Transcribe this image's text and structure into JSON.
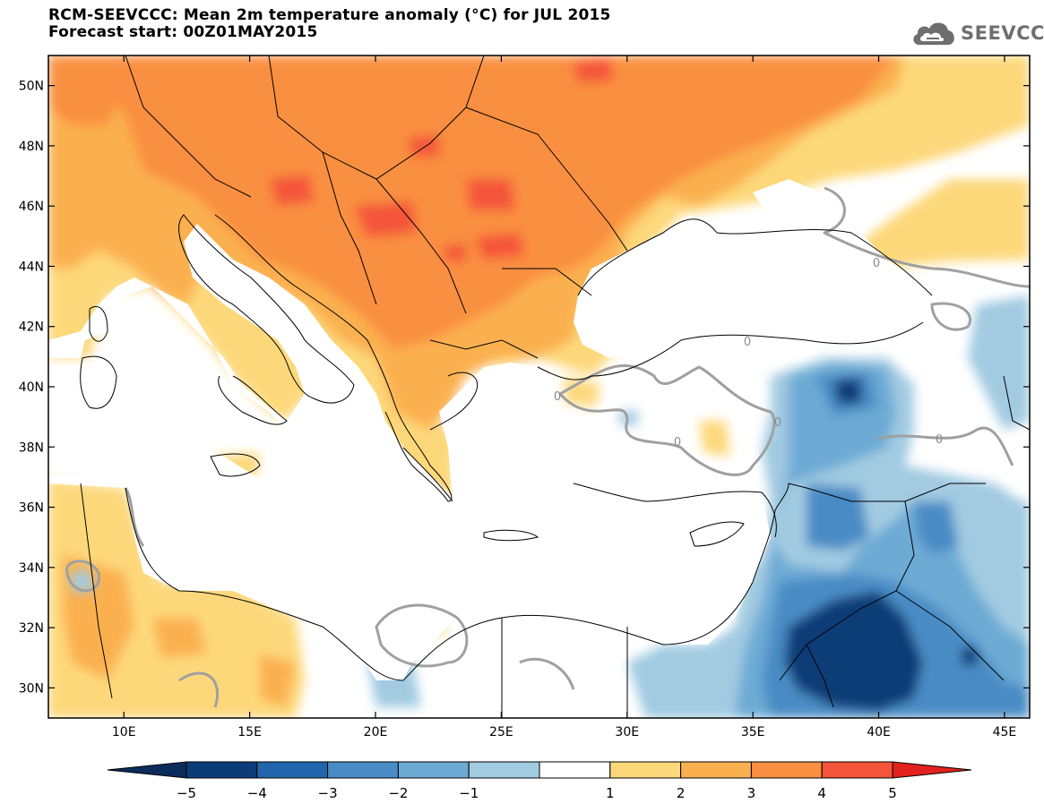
{
  "header": {
    "title_line1": "RCM-SEEVCCC: Mean 2m temperature anomaly (°C) for JUL 2015",
    "title_line2": "Forecast start: 00Z01MAY2015"
  },
  "logo": {
    "text": "SEEVCCC",
    "icon": "cloud-icon",
    "color": "#6e6e6e"
  },
  "map": {
    "lon_range": [
      7,
      46
    ],
    "lat_range": [
      29,
      51
    ],
    "lat_ticks": [
      {
        "value": 50,
        "label": "50N"
      },
      {
        "value": 48,
        "label": "48N"
      },
      {
        "value": 46,
        "label": "46N"
      },
      {
        "value": 44,
        "label": "44N"
      },
      {
        "value": 42,
        "label": "42N"
      },
      {
        "value": 40,
        "label": "40N"
      },
      {
        "value": 38,
        "label": "38N"
      },
      {
        "value": 36,
        "label": "36N"
      },
      {
        "value": 34,
        "label": "34N"
      },
      {
        "value": 32,
        "label": "32N"
      },
      {
        "value": 30,
        "label": "30N"
      }
    ],
    "lon_ticks": [
      {
        "value": 10,
        "label": "10E"
      },
      {
        "value": 15,
        "label": "15E"
      },
      {
        "value": 20,
        "label": "20E"
      },
      {
        "value": 25,
        "label": "25E"
      },
      {
        "value": 30,
        "label": "30E"
      },
      {
        "value": 35,
        "label": "35E"
      },
      {
        "value": 40,
        "label": "40E"
      },
      {
        "value": 45,
        "label": "45E"
      }
    ],
    "contour_label": "0",
    "colors": {
      "c1_2": "#fdd87a",
      "c2_3": "#fbb050",
      "c3_4": "#f98f40",
      "c4_5": "#f4543a",
      "cm1_m2": "#a2cbe2",
      "cm2_m3": "#6daad4",
      "cm3_m4": "#4a8cc5",
      "cm4_m5": "#0b3c77",
      "zero_contour": "#a0a0a0"
    }
  },
  "colorbar": {
    "labels": [
      "−5",
      "−4",
      "−3",
      "−2",
      "−1",
      "1",
      "2",
      "3",
      "4",
      "5"
    ],
    "colors": [
      "#0b3c77",
      "#2166ac",
      "#4a8cc5",
      "#6daad4",
      "#a2cbe2",
      "#ffffff",
      "#fdd87a",
      "#fbb050",
      "#f98f40",
      "#f4543a"
    ],
    "low_color": "#0b2c5a",
    "high_color": "#e2221f"
  }
}
